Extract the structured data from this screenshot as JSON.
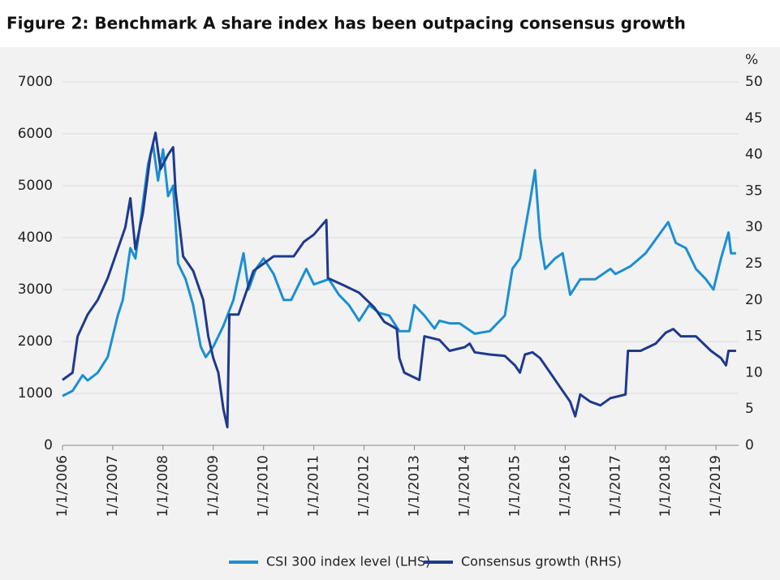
{
  "chart_data": {
    "type": "line",
    "title": "Figure 2: Benchmark A share index has been outpacing consensus growth",
    "y2label": "%",
    "xlim": [
      2006,
      2019.45
    ],
    "xticks": [
      {
        "value": 2006,
        "label": "1/1/2006"
      },
      {
        "value": 2007,
        "label": "1/1/2007"
      },
      {
        "value": 2008,
        "label": "1/1/2008"
      },
      {
        "value": 2009,
        "label": "1/1/2009"
      },
      {
        "value": 2010,
        "label": "1/1/2010"
      },
      {
        "value": 2011,
        "label": "1/1/2011"
      },
      {
        "value": 2012,
        "label": "1/1/2012"
      },
      {
        "value": 2013,
        "label": "1/1/2013"
      },
      {
        "value": 2014,
        "label": "1/1/2014"
      },
      {
        "value": 2015,
        "label": "1/1/2015"
      },
      {
        "value": 2016,
        "label": "1/1/2016"
      },
      {
        "value": 2017,
        "label": "1/1/2017"
      },
      {
        "value": 2018,
        "label": "1/1/2018"
      },
      {
        "value": 2019,
        "label": "1/1/2019"
      }
    ],
    "ylim": [
      0,
      7000
    ],
    "yticks": [
      0,
      1000,
      2000,
      3000,
      4000,
      5000,
      6000,
      7000
    ],
    "y2lim": [
      0,
      50
    ],
    "y2ticks": [
      0,
      5,
      10,
      15,
      20,
      25,
      30,
      35,
      40,
      45,
      50
    ],
    "grid": true,
    "legend": "bottom",
    "series": [
      {
        "name": "CSI 300 index level (LHS)",
        "color": "#1b8fd2",
        "x": [
          2006.0,
          2006.2,
          2006.4,
          2006.5,
          2006.7,
          2006.9,
          2007.1,
          2007.2,
          2007.35,
          2007.45,
          2007.55,
          2007.7,
          2007.8,
          2007.9,
          2008.0,
          2008.1,
          2008.2,
          2008.3,
          2008.45,
          2008.6,
          2008.75,
          2008.85,
          2009.0,
          2009.2,
          2009.4,
          2009.6,
          2009.7,
          2009.85,
          2010.0,
          2010.2,
          2010.4,
          2010.55,
          2010.85,
          2011.0,
          2011.3,
          2011.5,
          2011.7,
          2011.9,
          2012.1,
          2012.3,
          2012.5,
          2012.7,
          2012.9,
          2013.0,
          2013.2,
          2013.4,
          2013.5,
          2013.7,
          2013.9,
          2014.2,
          2014.5,
          2014.8,
          2014.95,
          2015.1,
          2015.3,
          2015.4,
          2015.5,
          2015.6,
          2015.8,
          2015.95,
          2016.1,
          2016.3,
          2016.6,
          2016.9,
          2017.0,
          2017.3,
          2017.6,
          2017.9,
          2018.05,
          2018.2,
          2018.4,
          2018.6,
          2018.8,
          2018.95,
          2019.1,
          2019.25,
          2019.3,
          2019.4
        ],
        "values": [
          950,
          1050,
          1350,
          1250,
          1400,
          1700,
          2500,
          2800,
          3800,
          3600,
          4300,
          5400,
          5800,
          5100,
          5700,
          4800,
          5000,
          3500,
          3200,
          2700,
          1900,
          1700,
          1900,
          2300,
          2800,
          3700,
          3000,
          3400,
          3600,
          3300,
          2800,
          2800,
          3400,
          3100,
          3200,
          2900,
          2700,
          2400,
          2700,
          2550,
          2500,
          2200,
          2200,
          2700,
          2500,
          2250,
          2400,
          2350,
          2350,
          2150,
          2200,
          2500,
          3400,
          3600,
          4700,
          5300,
          4000,
          3400,
          3600,
          3700,
          2900,
          3200,
          3200,
          3400,
          3300,
          3450,
          3700,
          4100,
          4300,
          3900,
          3800,
          3400,
          3200,
          3000,
          3600,
          4100,
          3700,
          3700
        ]
      },
      {
        "name": "Consensus growth (RHS)",
        "color": "#1f3a8c",
        "axis": "y2",
        "x": [
          2006.0,
          2006.2,
          2006.3,
          2006.5,
          2006.7,
          2006.9,
          2007.1,
          2007.25,
          2007.35,
          2007.45,
          2007.6,
          2007.75,
          2007.85,
          2007.95,
          2008.1,
          2008.2,
          2008.25,
          2008.4,
          2008.6,
          2008.8,
          2008.9,
          2009.0,
          2009.1,
          2009.2,
          2009.28,
          2009.32,
          2009.5,
          2009.6,
          2009.8,
          2010.0,
          2010.2,
          2010.4,
          2010.6,
          2010.8,
          2011.0,
          2011.25,
          2011.28,
          2011.6,
          2011.9,
          2012.2,
          2012.4,
          2012.65,
          2012.7,
          2012.8,
          2013.1,
          2013.2,
          2013.5,
          2013.7,
          2014.0,
          2014.1,
          2014.2,
          2014.5,
          2014.8,
          2015.0,
          2015.1,
          2015.2,
          2015.35,
          2015.5,
          2015.7,
          2015.9,
          2016.1,
          2016.2,
          2016.3,
          2016.5,
          2016.7,
          2016.9,
          2017.2,
          2017.25,
          2017.5,
          2017.8,
          2018.0,
          2018.15,
          2018.3,
          2018.6,
          2018.9,
          2019.1,
          2019.2,
          2019.25,
          2019.4
        ],
        "values": [
          9,
          10,
          15,
          18,
          20,
          23,
          27,
          30,
          34,
          27,
          32,
          40,
          43,
          38,
          40,
          41,
          35,
          26,
          24,
          20,
          15,
          12,
          10,
          5,
          2.5,
          18,
          18,
          20,
          24,
          25,
          26,
          26,
          26,
          28,
          29,
          31,
          23,
          22,
          21,
          19,
          17,
          16,
          12,
          10,
          9,
          15,
          14.5,
          13,
          13.5,
          14,
          12.8,
          12.5,
          12.3,
          11,
          10,
          12.5,
          12.8,
          12,
          10,
          8,
          6,
          4,
          7,
          6,
          5.5,
          6.5,
          7,
          13,
          13,
          14,
          15.5,
          16,
          15,
          15,
          13,
          12,
          11,
          13,
          13
        ]
      }
    ]
  }
}
